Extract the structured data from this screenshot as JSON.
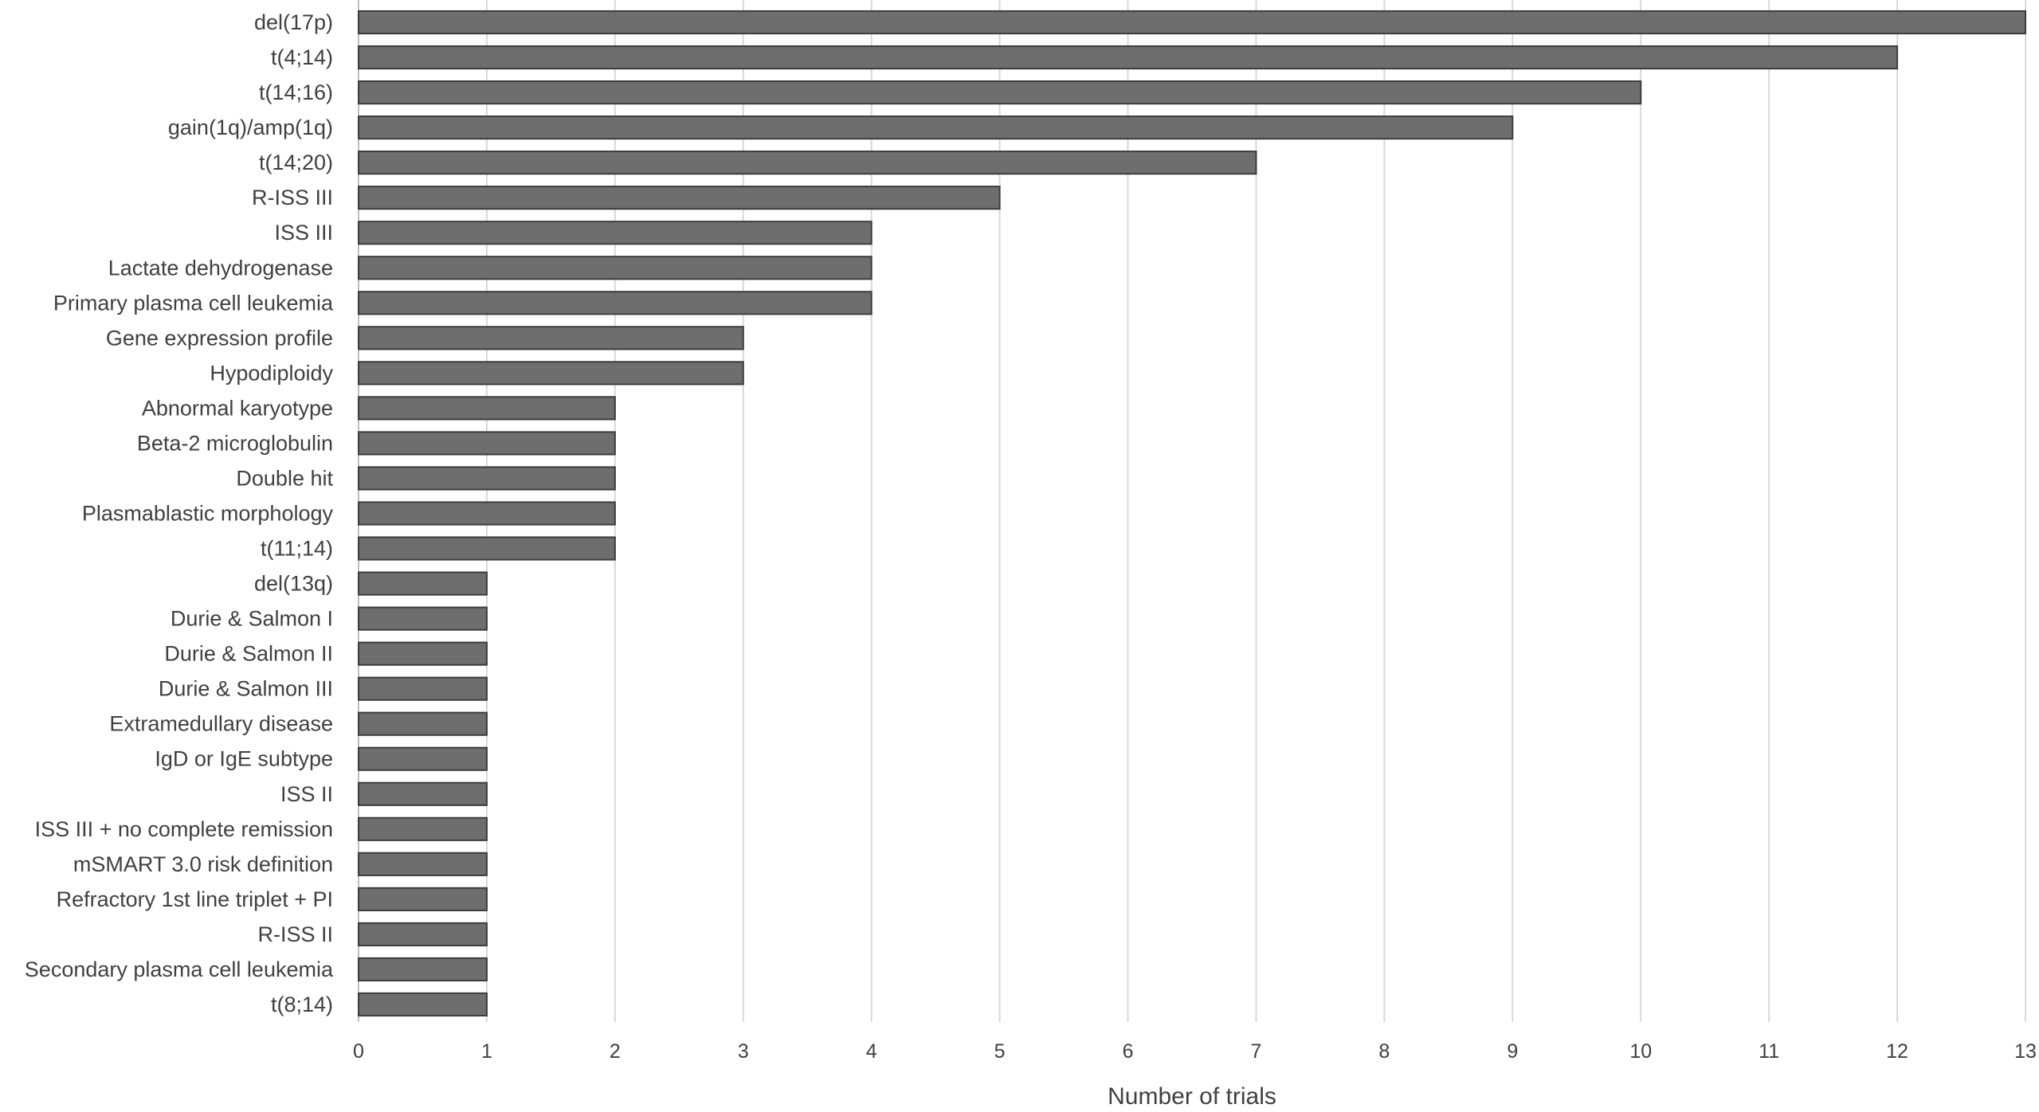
{
  "chart_data": {
    "type": "bar",
    "orientation": "horizontal",
    "title": "",
    "xlabel": "Number of trials",
    "ylabel": "",
    "xlim": [
      0,
      13
    ],
    "x_ticks": [
      0,
      1,
      2,
      3,
      4,
      5,
      6,
      7,
      8,
      9,
      10,
      11,
      12,
      13
    ],
    "grid": "vertical gridlines on",
    "legend": "none",
    "bar_color": "#6e6e6e",
    "bar_edge_color": "#3c3c3c",
    "gridline_color": "#d9d9d9",
    "text_color": "#404040",
    "categories": [
      "del(17p)",
      "t(4;14)",
      "t(14;16)",
      "gain(1q)/amp(1q)",
      "t(14;20)",
      "R-ISS III",
      "ISS III",
      "Lactate dehydrogenase",
      "Primary plasma cell leukemia",
      "Gene expression profile",
      "Hypodiploidy",
      "Abnormal karyotype",
      "Beta-2 microglobulin",
      "Double hit",
      "Plasmablastic morphology",
      "t(11;14)",
      "del(13q)",
      "Durie & Salmon I",
      "Durie & Salmon II",
      "Durie & Salmon III",
      "Extramedullary disease",
      "IgD or IgE subtype",
      "ISS II",
      "ISS III + no complete remission",
      "mSMART 3.0 risk definition",
      "Refractory 1st line triplet + PI",
      "R-ISS II",
      "Secondary plasma cell leukemia",
      "t(8;14)"
    ],
    "values": [
      13,
      12,
      10,
      9,
      7,
      5,
      4,
      4,
      4,
      3,
      3,
      2,
      2,
      2,
      2,
      2,
      1,
      1,
      1,
      1,
      1,
      1,
      1,
      1,
      1,
      1,
      1,
      1,
      1
    ]
  }
}
